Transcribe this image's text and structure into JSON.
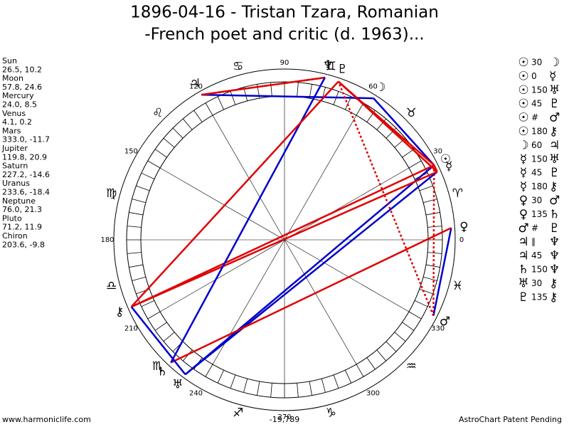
{
  "title": [
    "1896-04-16 - Tristan Tzara, Romanian",
    "-French poet and critic (d. 1963)..."
  ],
  "planets": [
    {
      "name": "Sun",
      "coords": "26.5, 10.2",
      "glyph": "☉"
    },
    {
      "name": "Moon",
      "coords": "57.8, 24.6",
      "glyph": "☽"
    },
    {
      "name": "Mercury",
      "coords": "24.0, 8.5",
      "glyph": "☿"
    },
    {
      "name": "Venus",
      "coords": "4.1, 0.2",
      "glyph": "♀"
    },
    {
      "name": "Mars",
      "coords": "333.0, -11.7",
      "glyph": "♂"
    },
    {
      "name": "Jupiter",
      "coords": "119.8, 20.9",
      "glyph": "♃"
    },
    {
      "name": "Saturn",
      "coords": "227.2, -14.6",
      "glyph": "♄"
    },
    {
      "name": "Uranus",
      "coords": "233.6, -18.4",
      "glyph": "♅"
    },
    {
      "name": "Neptune",
      "coords": "76.0, 21.3",
      "glyph": "♆"
    },
    {
      "name": "Pluto",
      "coords": "71.2, 11.9",
      "glyph": "♇"
    },
    {
      "name": "Chiron",
      "coords": "203.6, -9.8",
      "glyph": "⚷"
    }
  ],
  "aspects": [
    {
      "from": "☉",
      "aspect": "30",
      "to": "☽",
      "color": "#0000cc"
    },
    {
      "from": "☉",
      "aspect": "0",
      "to": "☿",
      "color": "#e00000"
    },
    {
      "from": "☉",
      "aspect": "150",
      "to": "♅",
      "color": "#0000cc"
    },
    {
      "from": "☉",
      "aspect": "45",
      "to": "♇",
      "color": "#e00000"
    },
    {
      "from": "☉",
      "aspect": "#",
      "to": "♂",
      "color": "#e00000"
    },
    {
      "from": "☉",
      "aspect": "180",
      "to": "⚷",
      "color": "#e00000"
    },
    {
      "from": "☽",
      "aspect": "60",
      "to": "♃",
      "color": "#0000cc"
    },
    {
      "from": "☿",
      "aspect": "150",
      "to": "♅",
      "color": "#0000cc"
    },
    {
      "from": "☿",
      "aspect": "45",
      "to": "♇",
      "color": "#e00000"
    },
    {
      "from": "☿",
      "aspect": "180",
      "to": "⚷",
      "color": "#e00000"
    },
    {
      "from": "♀",
      "aspect": "30",
      "to": "♂",
      "color": "#0000cc"
    },
    {
      "from": "♀",
      "aspect": "135",
      "to": "♄",
      "color": "#e00000"
    },
    {
      "from": "♂",
      "aspect": "#",
      "to": "♇",
      "color": "#e00000"
    },
    {
      "from": "♃",
      "aspect": "∥",
      "to": "♆",
      "color": "#e00000"
    },
    {
      "from": "♃",
      "aspect": "45",
      "to": "♆",
      "color": "#e00000"
    },
    {
      "from": "♄",
      "aspect": "150",
      "to": "♆",
      "color": "#0000cc"
    },
    {
      "from": "♅",
      "aspect": "30",
      "to": "⚷",
      "color": "#0000cc"
    },
    {
      "from": "♇",
      "aspect": "135",
      "to": "⚷",
      "color": "#e00000"
    }
  ],
  "zodiac": [
    "♈",
    "♉",
    "♊",
    "♋",
    "♌",
    "♍",
    "♎",
    "♏",
    "♐",
    "♑",
    "♒",
    "♓"
  ],
  "degree_labels": [
    0,
    30,
    60,
    90,
    120,
    150,
    180,
    210,
    240,
    270,
    300,
    330
  ],
  "center_label": "-19,789",
  "footer": {
    "left": "www.harmoniclife.com",
    "right": "AstroChart Patent Pending"
  }
}
